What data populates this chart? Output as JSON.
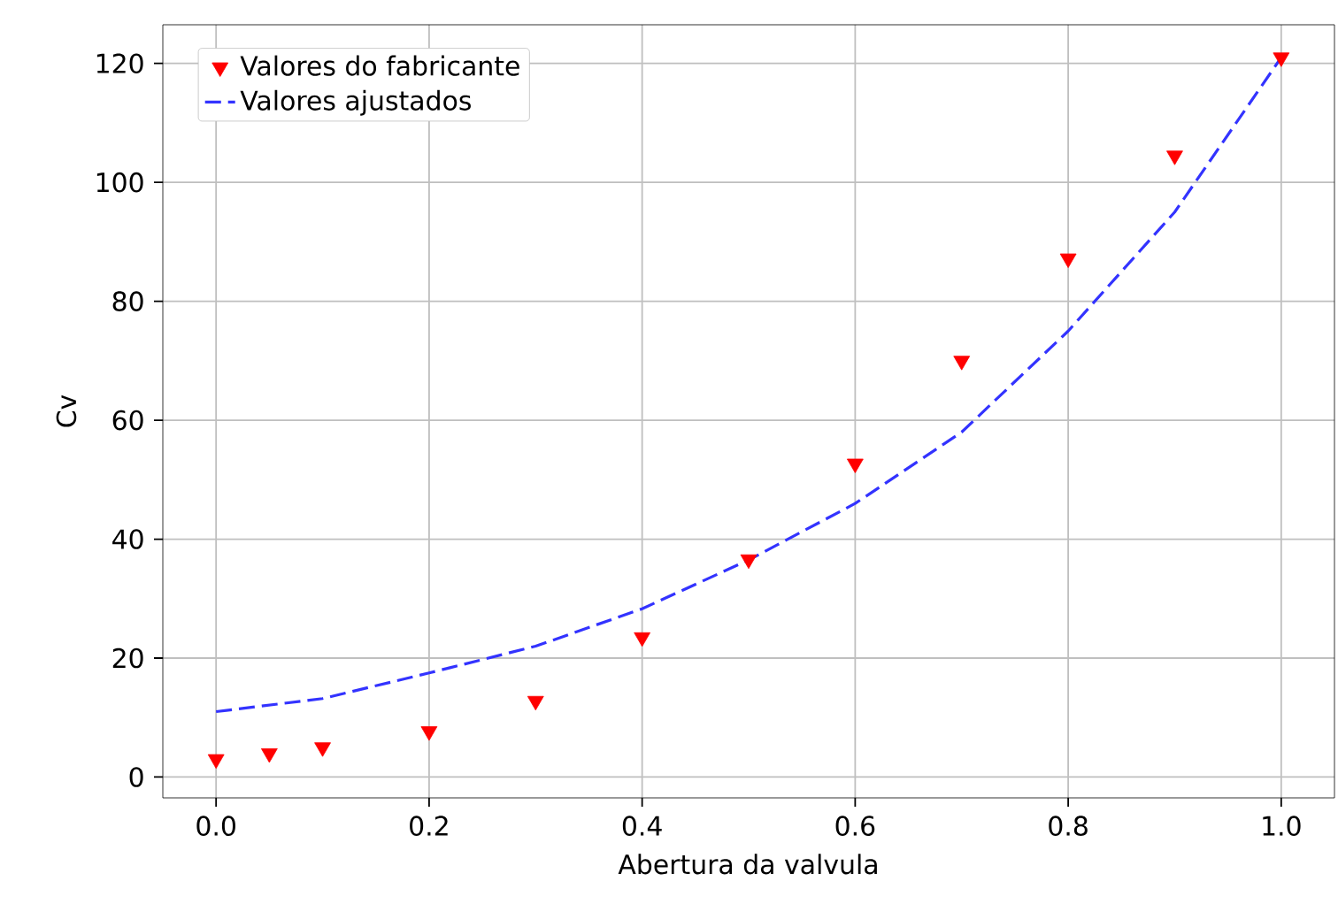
{
  "chart_data": {
    "type": "scatter",
    "xlabel": "Abertura da valvula",
    "ylabel": "Cv",
    "xlim": [
      -0.05,
      1.05
    ],
    "ylim": [
      -3.5,
      126.5
    ],
    "xticks": [
      {
        "value": 0,
        "label": "0.0"
      },
      0.2,
      0.4,
      0.6,
      0.8,
      {
        "value": 1,
        "label": "1.0"
      }
    ],
    "yticks": [
      0,
      20,
      40,
      60,
      80,
      100,
      120
    ],
    "grid": true,
    "legend": "top left",
    "series": [
      {
        "name": "Valores do fabricante",
        "marker": "triangle",
        "color": "#ff0000",
        "x": [
          0,
          0.05,
          0.1,
          0.2,
          0.3,
          0.4,
          0.5,
          0.6,
          0.7,
          0.8,
          0.9,
          1.0
        ],
        "values": [
          3,
          4,
          5,
          7.7,
          12.8,
          23.5,
          36.6,
          52.7,
          70,
          87.2,
          104.5,
          121
        ]
      },
      {
        "name": "Valores ajustados",
        "type": "line",
        "line_style": "dashed",
        "color": "#3333ff",
        "x": [
          0,
          0.1,
          0.2,
          0.3,
          0.4,
          0.5,
          0.6,
          0.7,
          0.8,
          0.9,
          1.0
        ],
        "values": [
          11,
          13.2,
          17.5,
          22,
          28.3,
          36.5,
          46,
          58,
          75,
          95,
          121
        ]
      }
    ]
  }
}
